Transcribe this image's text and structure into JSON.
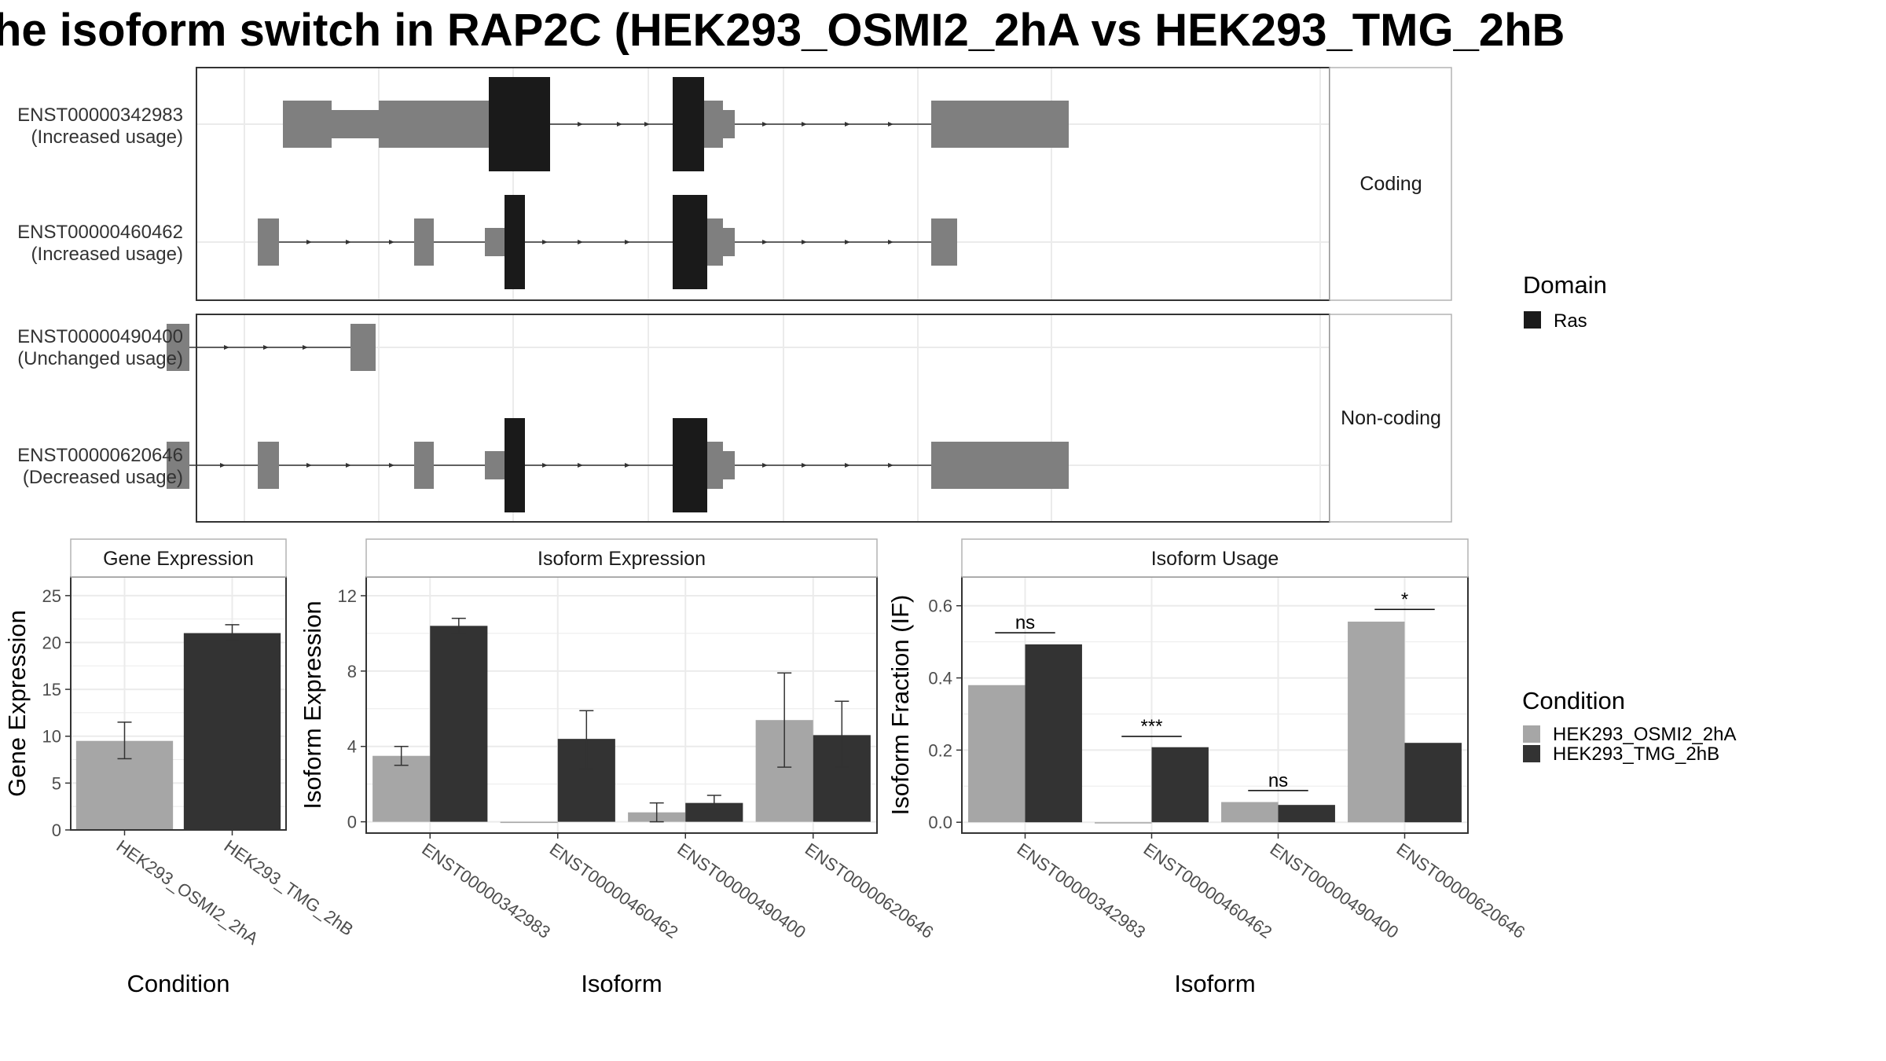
{
  "title": "he isoform switch in RAP2C (HEK293_OSMI2_2hA vs HEK293_TMG_2hB",
  "colors": {
    "exon": "#7f7f7f",
    "domain_ras": "#1a1a1a",
    "condition_a": "#a6a6a6",
    "condition_b": "#333333",
    "grid": "#ebebeb",
    "strip": "#ffffff",
    "panel_border": "#333333"
  },
  "chart_data": [
    {
      "type": "transcript_structure",
      "facets": [
        {
          "label": "Coding",
          "transcripts": [
            {
              "id": "ENST00000342983",
              "status": "(Increased usage)",
              "exons": [
                [
                  360,
                  422
                ],
                [
                  422,
                  482,
                  "h"
                ],
                [
                  482,
                  612
                ],
                [
                  612,
                  622
                ],
                [
                  622,
                  700,
                  "d"
                ],
                [
                  856,
                  896,
                  "d"
                ],
                [
                  896,
                  920
                ],
                [
                  920,
                  935,
                  "h"
                ],
                [
                  1185,
                  1360
                ]
              ],
              "arrows": [
                740,
                790,
                825,
                975,
                1025,
                1080,
                1135
              ]
            },
            {
              "id": "ENST00000460462",
              "status": "(Increased usage)",
              "exons": [
                [
                  328,
                  355
                ],
                [
                  527,
                  552
                ],
                [
                  617,
                  642,
                  "h"
                ],
                [
                  642,
                  668,
                  "d"
                ],
                [
                  856,
                  900,
                  "d"
                ],
                [
                  900,
                  920
                ],
                [
                  920,
                  935,
                  "h"
                ],
                [
                  1185,
                  1218
                ]
              ],
              "arrows": [
                395,
                445,
                500,
                695,
                740,
                800,
                975,
                1025,
                1080,
                1135
              ]
            }
          ]
        },
        {
          "label": "Non-coding",
          "transcripts": [
            {
              "id": "ENST00000490400",
              "status": "(Unchanged usage)",
              "exons": [
                [
                  212,
                  241
                ],
                [
                  446,
                  478
                ]
              ],
              "arrows": [
                290,
                340,
                390
              ]
            },
            {
              "id": "ENST00000620646",
              "status": "(Decreased usage)",
              "exons": [
                [
                  212,
                  241
                ],
                [
                  328,
                  355
                ],
                [
                  527,
                  552
                ],
                [
                  617,
                  642,
                  "h"
                ],
                [
                  642,
                  668,
                  "d"
                ],
                [
                  856,
                  900,
                  "d"
                ],
                [
                  900,
                  920
                ],
                [
                  920,
                  935,
                  "h"
                ],
                [
                  1185,
                  1360
                ]
              ],
              "arrows": [
                285,
                395,
                445,
                500,
                695,
                740,
                800,
                975,
                1025,
                1080,
                1135
              ]
            }
          ]
        }
      ],
      "domain_legend": {
        "title": "Domain",
        "items": [
          "Ras"
        ]
      }
    },
    {
      "type": "bar",
      "strip": "Gene Expression",
      "xlabel": "Condition",
      "ylabel": "Gene Expression",
      "ylim": [
        0,
        27
      ],
      "yticks": [
        0,
        5,
        10,
        15,
        20,
        25
      ],
      "categories": [
        "HEK293_OSMI2_2hA",
        "HEK293_TMG_2hB"
      ],
      "series": [
        {
          "values": [
            9.5,
            21.0
          ],
          "err_low": [
            7.6,
            20.3
          ],
          "err_high": [
            11.5,
            21.9
          ],
          "per_category_color": [
            "#a6a6a6",
            "#333333"
          ]
        }
      ]
    },
    {
      "type": "bar",
      "strip": "Isoform Expression",
      "xlabel": "Isoform",
      "ylabel": "Isoform Expression",
      "ylim": [
        -0.6,
        13
      ],
      "yticks": [
        0,
        4,
        8,
        12
      ],
      "categories": [
        "ENST00000342983",
        "ENST00000460462",
        "ENST00000490400",
        "ENST00000620646"
      ],
      "series": [
        {
          "name": "HEK293_OSMI2_2hA",
          "values": [
            3.5,
            0.0,
            0.5,
            5.4
          ],
          "err_low": [
            3.0,
            0.0,
            0.0,
            2.9
          ],
          "err_high": [
            4.0,
            0.0,
            1.0,
            7.9
          ]
        },
        {
          "name": "HEK293_TMG_2hB",
          "values": [
            10.4,
            4.4,
            1.0,
            4.6
          ],
          "err_low": [
            10.0,
            2.8,
            0.7,
            2.9
          ],
          "err_high": [
            10.8,
            5.9,
            1.4,
            6.4
          ]
        }
      ]
    },
    {
      "type": "bar",
      "strip": "Isoform Usage",
      "xlabel": "Isoform",
      "ylabel": "Isoform Fraction (IF)",
      "ylim": [
        -0.03,
        0.68
      ],
      "yticks": [
        0.0,
        0.2,
        0.4,
        0.6
      ],
      "categories": [
        "ENST00000342983",
        "ENST00000460462",
        "ENST00000490400",
        "ENST00000620646"
      ],
      "series": [
        {
          "name": "HEK293_OSMI2_2hA",
          "values": [
            0.38,
            0.0,
            0.056,
            0.556
          ]
        },
        {
          "name": "HEK293_TMG_2hB",
          "values": [
            0.493,
            0.208,
            0.048,
            0.22
          ]
        }
      ],
      "significance": [
        "ns",
        "***",
        "ns",
        "*"
      ],
      "sig_line_y": [
        0.525,
        0.238,
        0.088,
        0.59
      ]
    }
  ],
  "condition_legend": {
    "title": "Condition",
    "items": [
      "HEK293_OSMI2_2hA",
      "HEK293_TMG_2hB"
    ]
  }
}
